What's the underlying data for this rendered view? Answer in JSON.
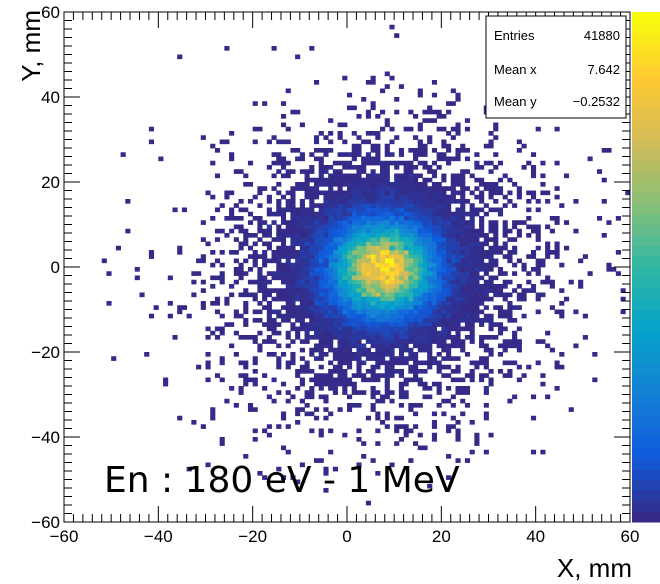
{
  "chart_data": {
    "type": "heatmap",
    "title": "",
    "xlabel": "X, mm",
    "ylabel": "Y, mm",
    "xlim": [
      -60,
      60
    ],
    "ylim": [
      -60,
      60
    ],
    "x_ticks": [
      -60,
      -40,
      -20,
      0,
      20,
      40,
      60
    ],
    "y_ticks": [
      -60,
      -40,
      -20,
      0,
      20,
      40,
      60
    ],
    "x_tick_labels": [
      "−60",
      "−40",
      "−20",
      "0",
      "20",
      "40",
      "60"
    ],
    "y_tick_labels": [
      "−60",
      "−40",
      "−20",
      "0",
      "20",
      "40",
      "60"
    ],
    "bins": 120,
    "grid": false,
    "colormap": "kBird",
    "palette_colors": [
      "#352a87",
      "#0f5cdd",
      "#1481d6",
      "#06a4ca",
      "#2eb7a4",
      "#87bf77",
      "#d1bb59",
      "#fec832",
      "#f9fb0e"
    ],
    "empty_color": "#ffffff",
    "distribution": {
      "core": {
        "center_x": 7.6,
        "center_y": -0.25,
        "sigma_x": 6.5,
        "sigma_y": 6.5,
        "fraction": 0.9
      },
      "halo": {
        "center_x": 7.6,
        "center_y": -0.25,
        "sigma_x": 17,
        "sigma_y": 17,
        "fraction": 0.1
      }
    },
    "stats": [
      {
        "label": "Entries",
        "value": "41880"
      },
      {
        "label": "Mean x",
        "value": "7.642"
      },
      {
        "label": "Mean y",
        "value": "−0.2532"
      }
    ],
    "annotation": "En : 180 eV - 1 MeV"
  }
}
